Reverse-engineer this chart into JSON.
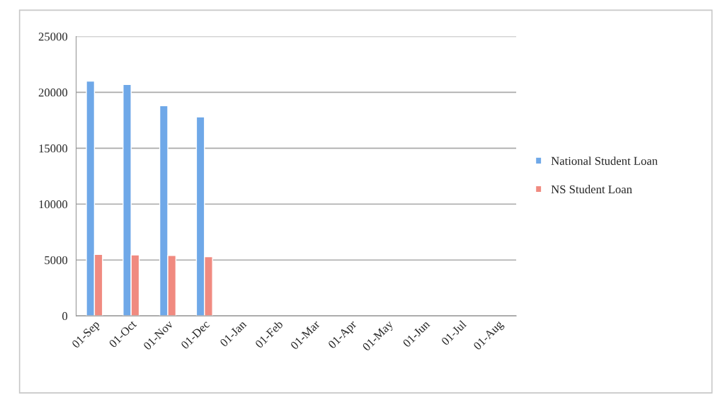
{
  "chart_data": {
    "type": "bar",
    "categories": [
      "01-Sep",
      "01-Oct",
      "01-Nov",
      "01-Dec",
      "01-Jan",
      "01-Feb",
      "01-Mar",
      "01-Apr",
      "01-May",
      "01-Jun",
      "01-Jul",
      "01-Aug"
    ],
    "series": [
      {
        "name": "National Student Loan",
        "color": "#6fa8e8",
        "values": [
          21000,
          20700,
          18800,
          17800,
          null,
          null,
          null,
          null,
          null,
          null,
          null,
          null
        ]
      },
      {
        "name": "NS Student Loan",
        "color": "#f08a80",
        "values": [
          5500,
          5450,
          5400,
          5300,
          null,
          null,
          null,
          null,
          null,
          null,
          null,
          null
        ]
      }
    ],
    "ylim": [
      0,
      25000
    ],
    "yticks": [
      0,
      5000,
      10000,
      15000,
      20000,
      25000
    ],
    "grid": "y",
    "legend": "right"
  }
}
